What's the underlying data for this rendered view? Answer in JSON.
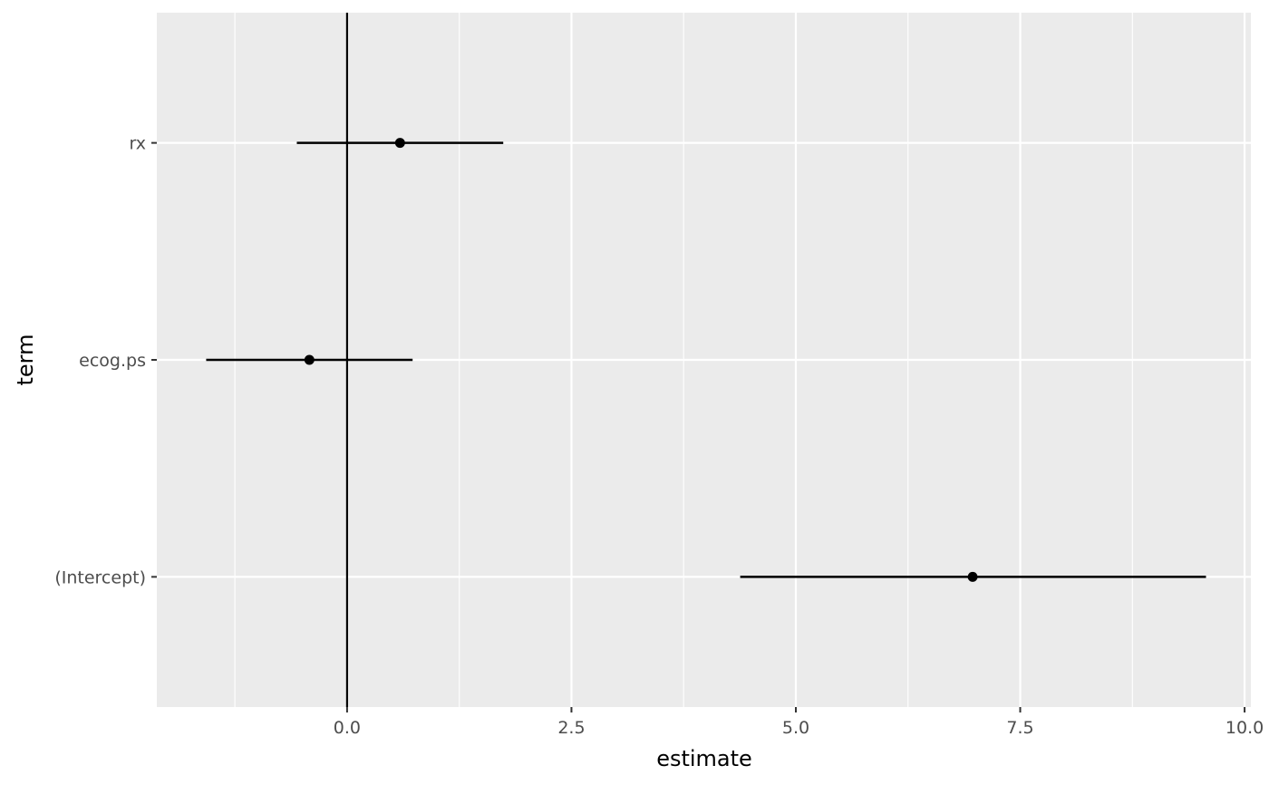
{
  "chart_data": {
    "type": "errorbar",
    "title": "",
    "xlabel": "estimate",
    "ylabel": "term",
    "xlim": [
      -2.12,
      10.07
    ],
    "x_ticks": [
      0,
      2.5,
      5,
      7.5,
      10
    ],
    "x_tick_labels": [
      "0.0",
      "2.5",
      "5.0",
      "7.5",
      "10.0"
    ],
    "categories": [
      "rx",
      "ecog.ps",
      "(Intercept)"
    ],
    "points": [
      {
        "term": "rx",
        "estimate": 0.59,
        "conf_low": -0.56,
        "conf_high": 1.74
      },
      {
        "term": "ecog.ps",
        "estimate": -0.42,
        "conf_low": -1.57,
        "conf_high": 0.73
      },
      {
        "term": "(Intercept)",
        "estimate": 6.97,
        "conf_low": 4.38,
        "conf_high": 9.57
      }
    ],
    "reference_line_x": 0,
    "grid": true,
    "colors": {
      "panel": "#ebebeb",
      "grid": "#ffffff",
      "marks": "#000000"
    }
  }
}
